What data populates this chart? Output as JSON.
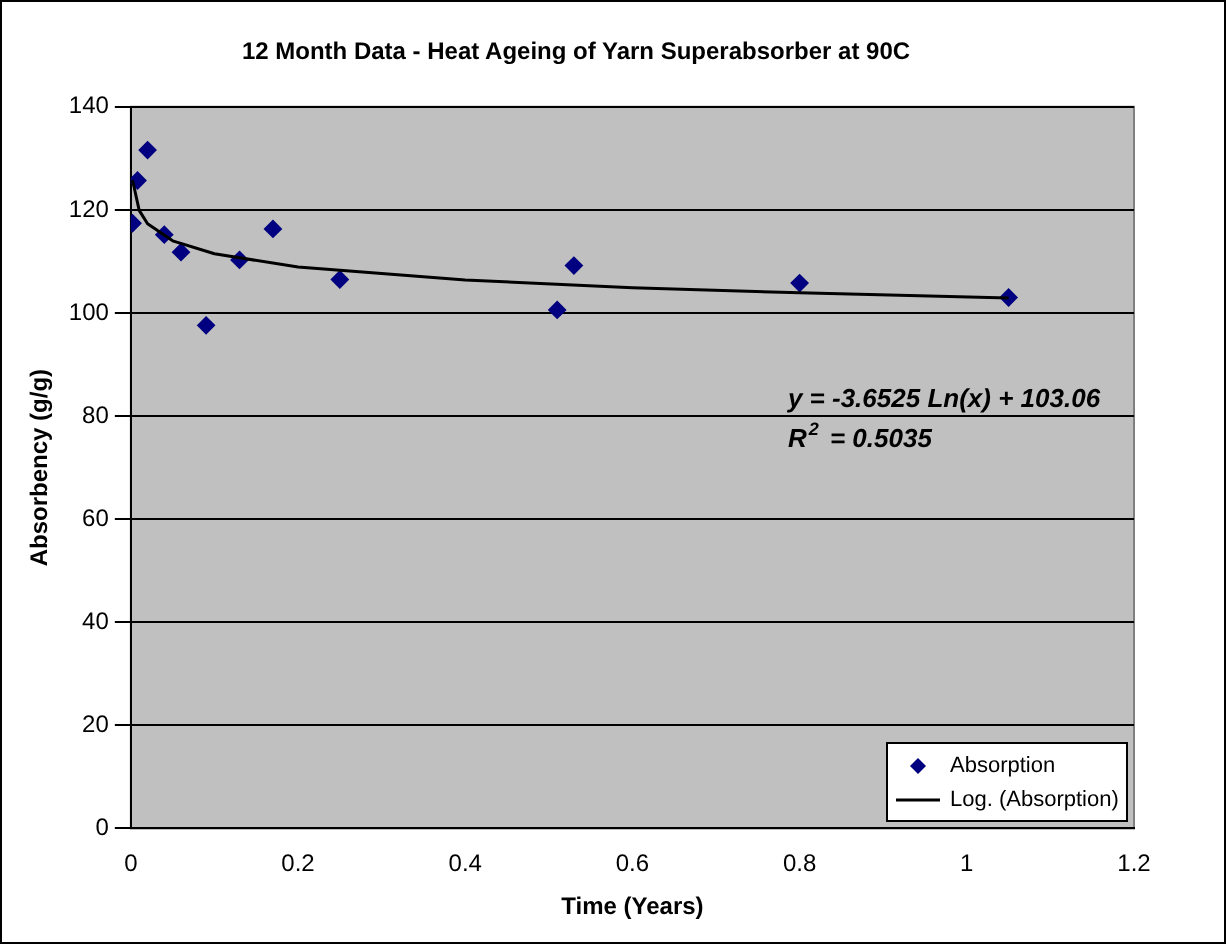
{
  "chart_data": {
    "type": "scatter",
    "title": "12 Month Data - Heat Ageing of Yarn Superabsorber at 90C",
    "xlabel": "Time (Years)",
    "ylabel": "Absorbency (g/g)",
    "x": [
      0.002,
      0.008,
      0.02,
      0.04,
      0.06,
      0.09,
      0.13,
      0.17,
      0.25,
      0.51,
      0.53,
      0.8,
      1.05
    ],
    "series": [
      {
        "name": "Absorption",
        "color": "#000080",
        "marker": "diamond",
        "values": [
          117.4,
          125.7,
          131.6,
          115.2,
          111.8,
          97.6,
          110.3,
          116.3,
          106.5,
          100.6,
          109.2,
          105.8,
          103
        ]
      },
      {
        "name": "Log. (Absorption)",
        "type": "line",
        "color": "#000000",
        "marker": "none",
        "x": [
          0.002,
          0.01,
          0.02,
          0.05,
          0.1,
          0.2,
          0.4,
          0.6,
          0.8,
          1.05
        ],
        "values": [
          125.8,
          119.9,
          117.3,
          114,
          111.5,
          108.9,
          106.4,
          104.9,
          103.9,
          102.9
        ]
      }
    ],
    "xlim": [
      0,
      1.2
    ],
    "xticks": [
      0,
      0.2,
      0.4,
      0.6,
      0.8,
      1,
      1.2
    ],
    "ylim": [
      0,
      140
    ],
    "yticks": [
      0,
      20,
      40,
      60,
      80,
      100,
      120,
      140
    ],
    "grid": "y",
    "legend": "bottom right",
    "line_style": "solid",
    "annotations": [
      "y = -3.6525 Ln(x) + 103.06",
      "R$^{2}$ = 0.5035"
    ]
  }
}
